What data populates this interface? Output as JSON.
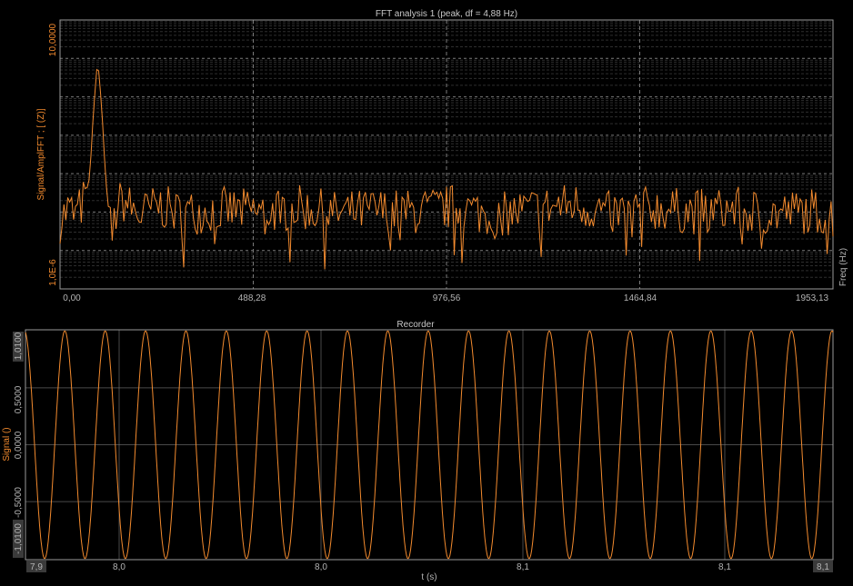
{
  "colors": {
    "background": "#000000",
    "frame": "#9a9a9a",
    "grid_major": "#7a7a7a",
    "grid_minor": "#2e2e2e",
    "signal": "#f28a2e",
    "title_text": "#c8c8c8",
    "tick_text": "#b4b4b4",
    "tick_box": "#3a3a3a"
  },
  "fft": {
    "title": "FFT analysis 1 (peak, df = 4,88 Hz)",
    "ylabel": "Signal/AmplFFT ; [ (Z)]",
    "xlabel": "Freq (Hz)",
    "x_ticks": [
      "0,00",
      "488,28",
      "976,56",
      "1464,84",
      "1953,13"
    ],
    "y_ticks": [
      "10,0000",
      "1,0E-6"
    ]
  },
  "recorder": {
    "title": "Recorder",
    "ylabel": "Signal ()",
    "xlabel": "t (s)",
    "x_ticks": [
      "7,9",
      "8,0",
      "8,0",
      "8,1",
      "8,1",
      "8,1"
    ],
    "y_ticks": [
      "1,0100",
      "0,5000",
      "0,0000",
      "-0,5000",
      "-1,0100"
    ]
  },
  "chart_data": [
    {
      "type": "line",
      "title": "FFT analysis 1 (peak, df = 4,88 Hz)",
      "xlabel": "Freq (Hz)",
      "ylabel": "Signal/AmplFFT ; [ (Z)]",
      "log_y": true,
      "xlim": [
        0,
        1953.13
      ],
      "ylim": [
        1e-06,
        10
      ],
      "x_ticks": [
        0,
        488.28,
        976.56,
        1464.84,
        1953.13
      ],
      "grid": true,
      "series": [
        {
          "peak": {
            "x": 95,
            "y": 1.0
          },
          "noise_floor": 0.0001,
          "x": [
            0,
            20,
            40,
            60,
            75,
            85,
            95,
            105,
            115,
            130,
            145,
            160,
            200,
            250,
            300,
            400,
            500,
            600,
            700,
            800,
            900,
            1000,
            1100,
            1200,
            1300,
            1400,
            1500,
            1600,
            1700,
            1800,
            1900,
            1953
          ],
          "y": [
            6e-05,
            0.00012,
            8e-05,
            0.0002,
            0.0008,
            0.05,
            1.0,
            0.06,
            0.0008,
            2e-05,
            0.00015,
            0.0002,
            8e-05,
            0.00015,
            9e-05,
            0.00012,
            0.0001,
            0.00013,
            9e-05,
            0.00011,
            0.0001,
            0.00014,
            8e-05,
            0.00012,
            0.00016,
            9e-05,
            0.00013,
            0.0001,
            0.00012,
            9e-05,
            0.00011,
            8e-05
          ]
        }
      ]
    },
    {
      "type": "line",
      "title": "Recorder",
      "xlabel": "t (s)",
      "ylabel": "Signal ()",
      "xlim": [
        7.9,
        8.1
      ],
      "ylim": [
        -1.01,
        1.01
      ],
      "y_ticks": [
        1.01,
        0.5,
        0.0,
        -0.5,
        -1.01
      ],
      "grid": true,
      "series": [
        {
          "function": "sine",
          "amplitude": 1.0,
          "frequency_hz": 97.66,
          "cycles_visible": 20
        }
      ]
    }
  ]
}
